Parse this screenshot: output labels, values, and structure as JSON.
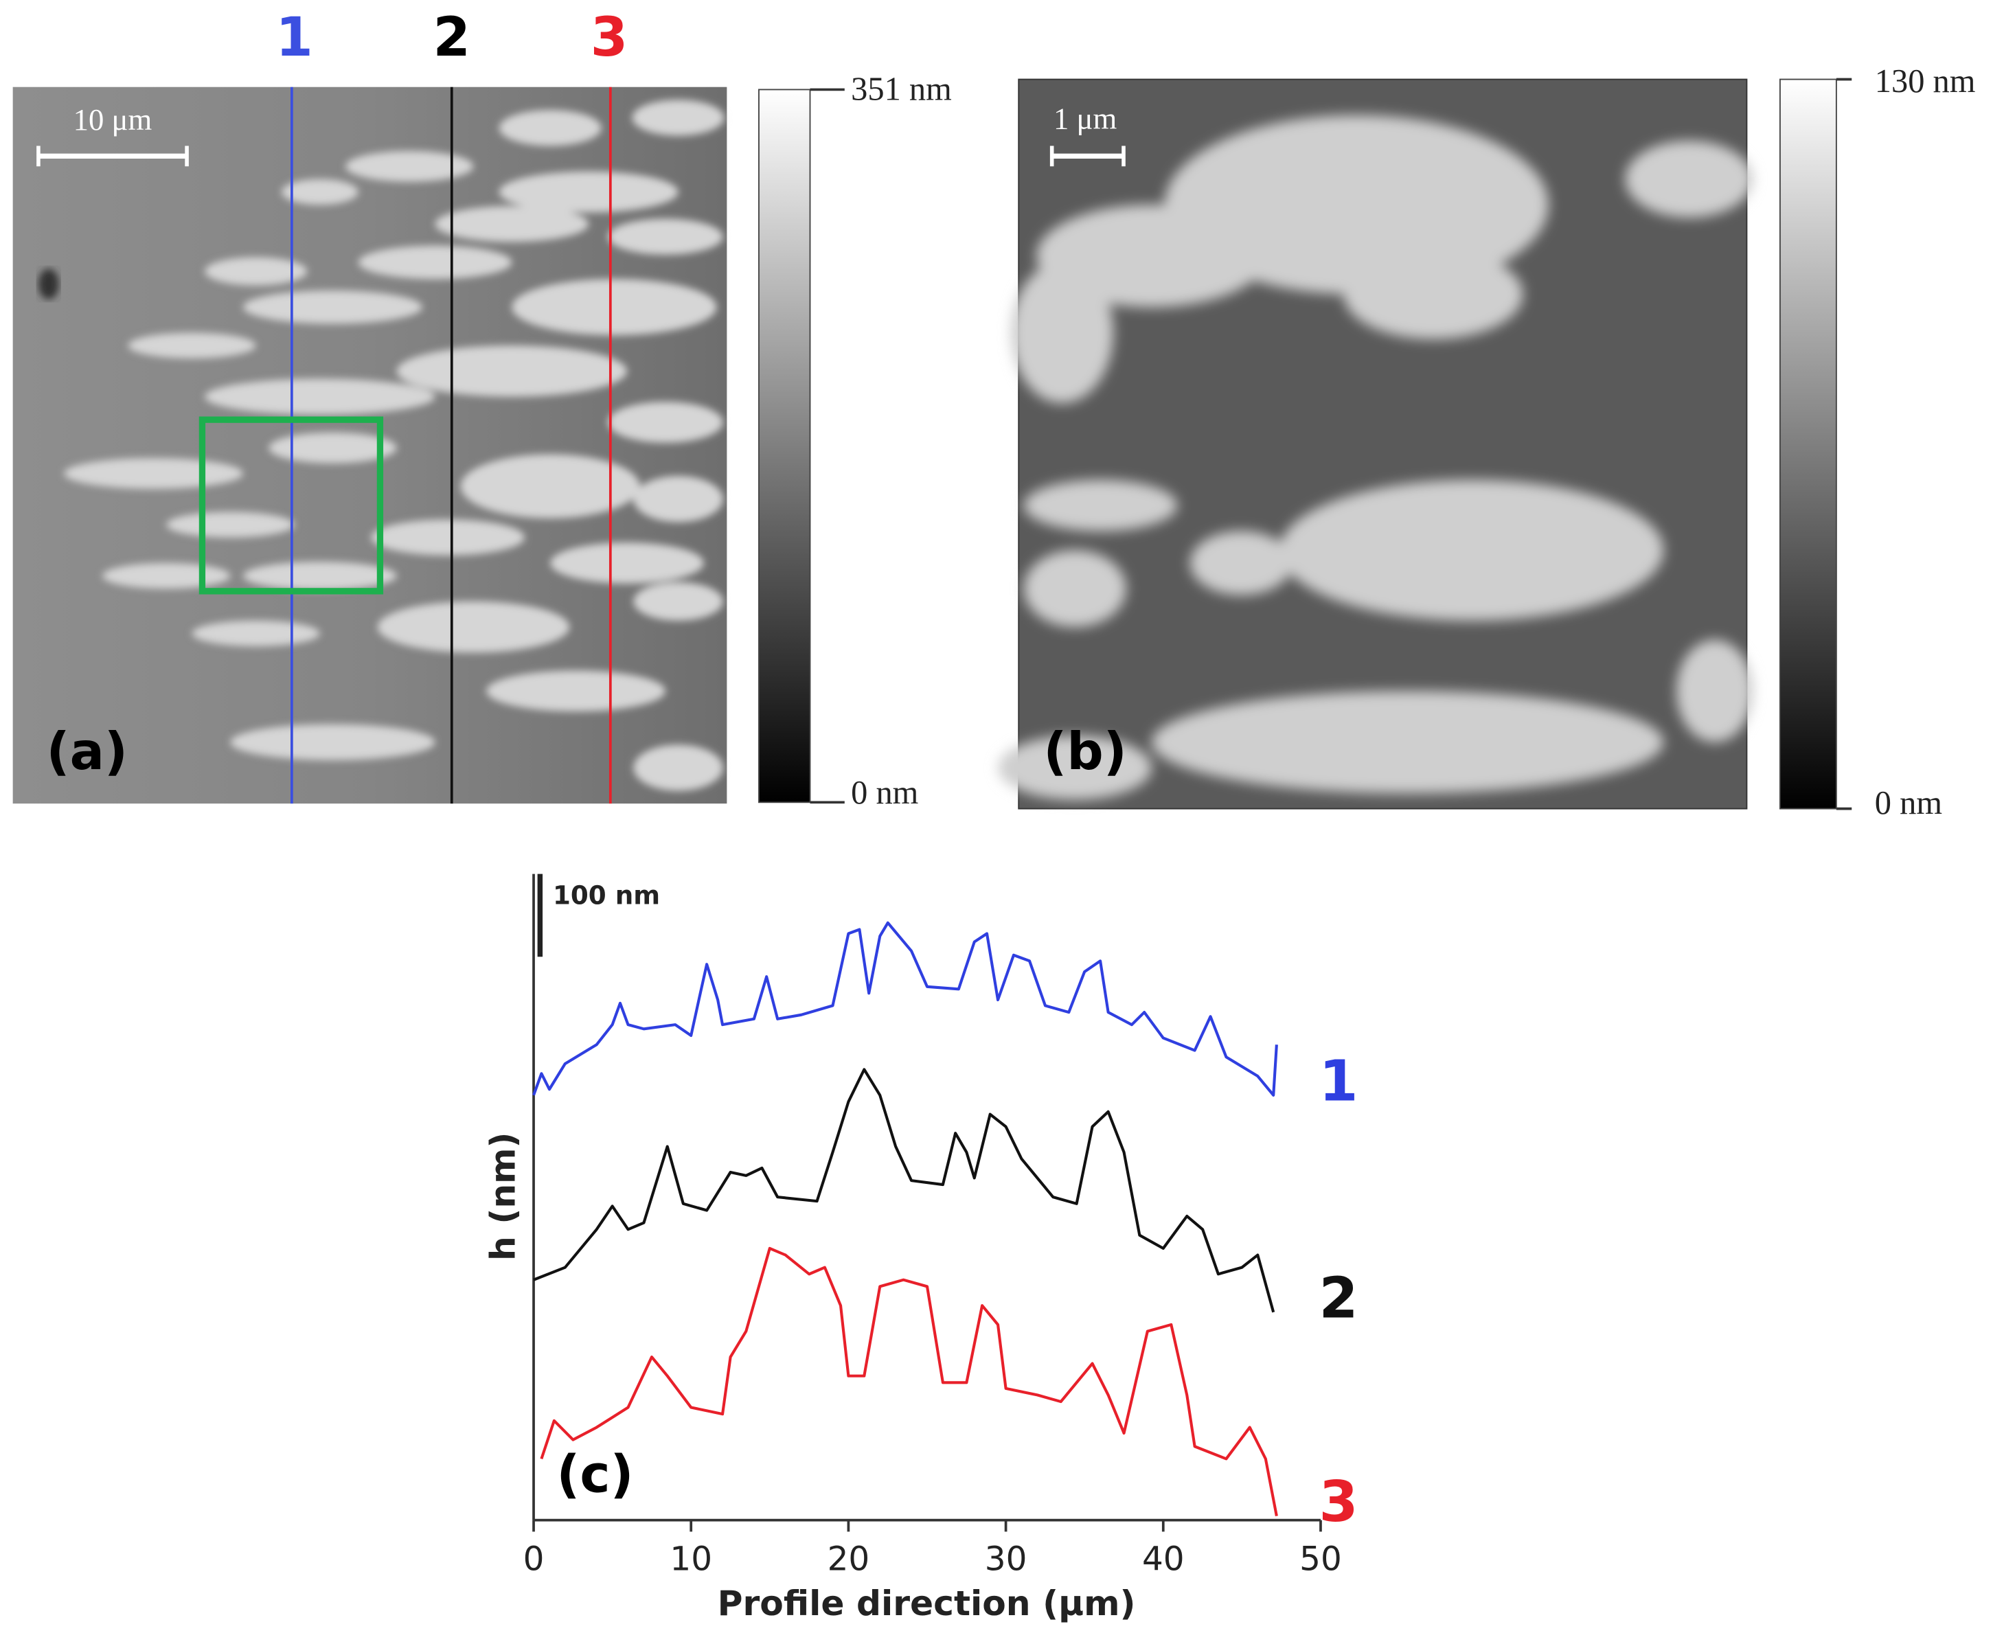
{
  "image_a": {
    "label": "(a)",
    "scale_bar": "10 μm",
    "colorbar_max": "351 nm",
    "colorbar_min": "0 nm",
    "line_labels": [
      "1",
      "2",
      "3"
    ]
  },
  "image_b": {
    "label": "(b)",
    "scale_bar": "1 μm",
    "colorbar_max": "130 nm",
    "colorbar_min": "0 nm"
  },
  "chart_data": {
    "type": "line",
    "label": "(c)",
    "x_label": "Profile direction (μm)",
    "y_label": "h (nm)",
    "scale_bar": {
      "value": 100,
      "label": "100 nm"
    },
    "xlim": [
      0,
      50
    ],
    "xticks": [
      0,
      10,
      20,
      30,
      40,
      50
    ],
    "ylim": [
      0,
      780
    ],
    "series": [
      {
        "name": "1",
        "color": "#2f3fe0",
        "x": [
          0,
          0.5,
          1,
          2,
          4,
          5,
          5.5,
          6,
          7,
          9,
          10,
          10.5,
          11,
          11.7,
          12,
          14,
          14.8,
          15.5,
          17,
          19,
          20,
          20.7,
          21.3,
          22,
          22.5,
          24,
          25,
          27,
          28,
          28.8,
          29.5,
          30.5,
          31.5,
          32.5,
          34,
          35,
          36,
          36.5,
          38,
          38.8,
          40,
          42,
          43,
          44,
          46,
          47,
          47.2
        ],
        "values": [
          513,
          539,
          520,
          551,
          574,
          598,
          624,
          598,
          593,
          598,
          585,
          628,
          671,
          628,
          598,
          605,
          656,
          605,
          610,
          621,
          708,
          713,
          636,
          705,
          721,
          687,
          644,
          641,
          698,
          708,
          628,
          682,
          675,
          621,
          613,
          662,
          675,
          613,
          598,
          613,
          582,
          567,
          608,
          559,
          536,
          513,
          574
        ]
      },
      {
        "name": "2",
        "color": "#111111",
        "x": [
          0,
          2,
          4,
          5,
          6,
          7,
          8.5,
          9.5,
          11,
          12.5,
          13.5,
          14.5,
          15.5,
          18,
          19,
          20,
          21,
          22,
          23,
          24,
          26,
          26.8,
          27.5,
          28,
          29,
          30,
          31,
          33,
          34.5,
          35.5,
          36.5,
          37.5,
          38.5,
          40,
          41.5,
          42.5,
          43.5,
          45,
          46,
          47
        ],
        "values": [
          290,
          305,
          351,
          379,
          351,
          359,
          451,
          382,
          374,
          420,
          416,
          425,
          390,
          385,
          444,
          505,
          544,
          513,
          451,
          410,
          405,
          467,
          444,
          413,
          490,
          475,
          436,
          390,
          382,
          475,
          493,
          444,
          344,
          328,
          367,
          351,
          297,
          305,
          320,
          251
        ]
      },
      {
        "name": "3",
        "color": "#e8202a",
        "x": [
          0.5,
          1.3,
          2.5,
          4,
          6,
          7.5,
          8.5,
          10,
          12,
          12.5,
          13.5,
          15,
          16,
          17.5,
          18.5,
          19.5,
          20,
          21,
          22,
          23.5,
          25,
          26,
          27.5,
          28.5,
          29.5,
          30,
          32,
          33.5,
          34.5,
          35.5,
          36.5,
          37.5,
          39,
          40.5,
          41.5,
          42,
          44,
          45.5,
          46.5,
          47.2
        ],
        "values": [
          74,
          120,
          97,
          112,
          136,
          197,
          174,
          136,
          128,
          197,
          228,
          328,
          320,
          297,
          305,
          259,
          174,
          174,
          282,
          290,
          282,
          166,
          166,
          259,
          236,
          159,
          151,
          143,
          166,
          189,
          151,
          105,
          228,
          236,
          151,
          89,
          74,
          112,
          74,
          5
        ]
      }
    ]
  }
}
